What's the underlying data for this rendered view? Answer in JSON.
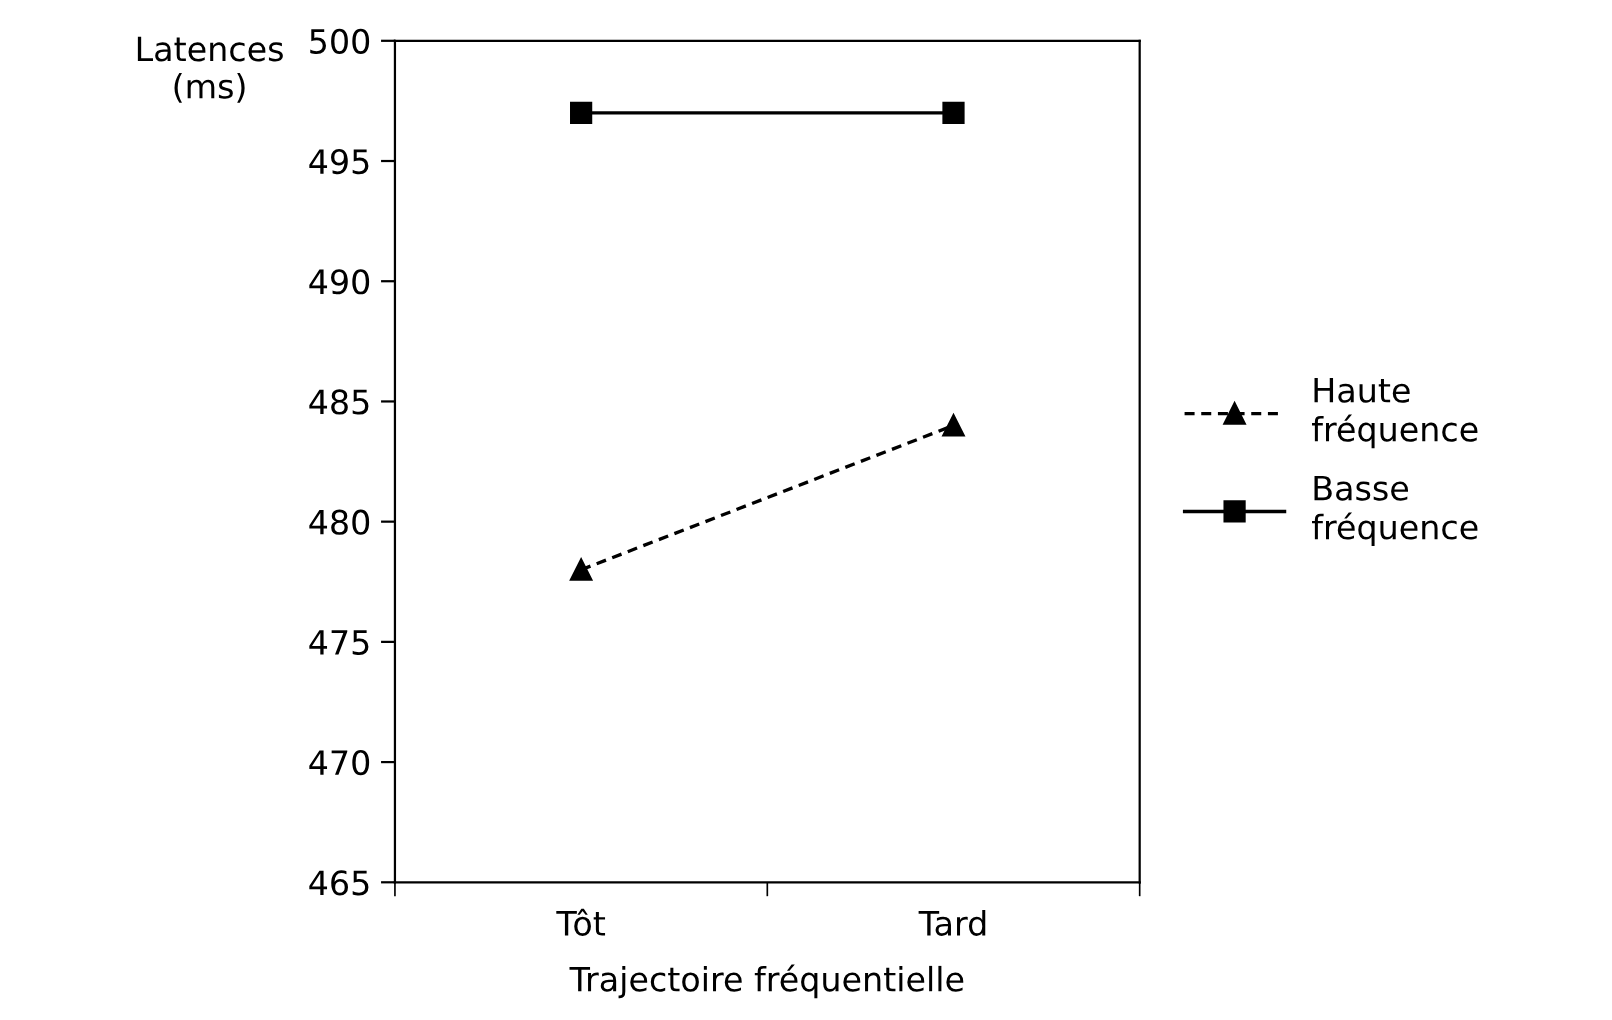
{
  "chart_data": {
    "type": "line",
    "xlabel": "Trajectoire fréquentielle",
    "ylabel": "Latences\n(ms)",
    "categories": [
      "Tôt",
      "Tard"
    ],
    "series": [
      {
        "name": "Haute fréquence",
        "color": "#000000",
        "values": [
          478,
          484
        ],
        "marker": "triangle",
        "line_style": "dashed"
      },
      {
        "name": "Basse fréquence",
        "color": "#000000",
        "values": [
          497,
          497
        ],
        "marker": "square",
        "line_style": "solid"
      }
    ],
    "ylim": [
      465,
      500
    ],
    "yticks": [
      465,
      470,
      475,
      480,
      485,
      490,
      495,
      500
    ],
    "grid": false,
    "legend": "right"
  }
}
